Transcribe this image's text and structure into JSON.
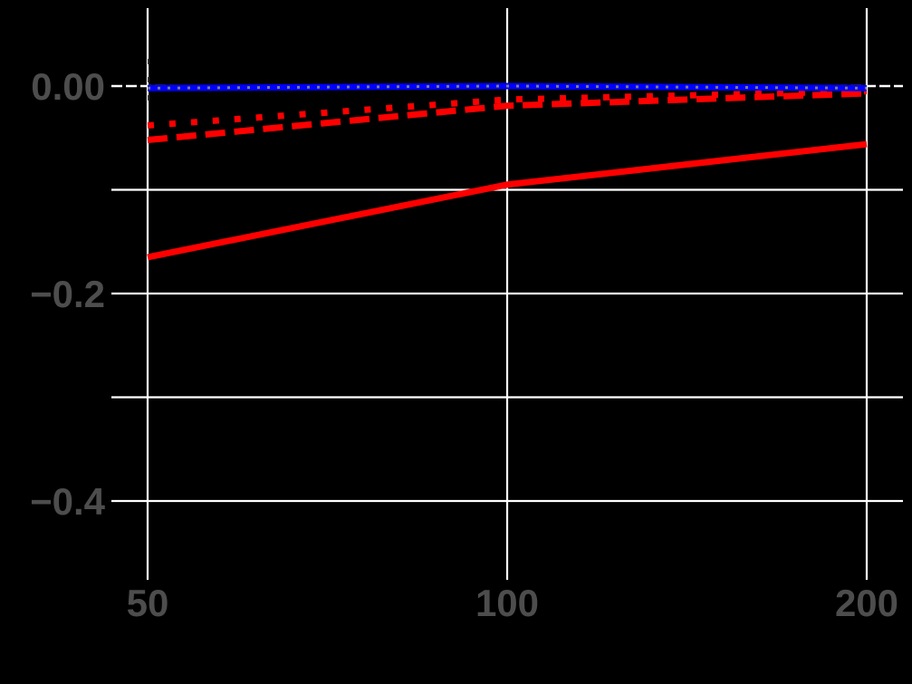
{
  "chart_data": {
    "type": "line",
    "title": "",
    "xlabel": "",
    "ylabel": "",
    "x_scale": "log",
    "x": [
      50,
      100,
      200
    ],
    "x_ticks": [
      50,
      100,
      200
    ],
    "x_tick_labels": [
      "50",
      "100",
      "200"
    ],
    "y_ticks": [
      0.0,
      -0.2,
      -0.4
    ],
    "y_tick_labels": [
      "0.00",
      "−0.2",
      "−0.4"
    ],
    "y_minor_gridlines": [
      -0.1,
      -0.3
    ],
    "xlim": [
      50,
      200
    ],
    "ylim": [
      -0.47,
      0.075
    ],
    "grid": true,
    "legend": null,
    "reference_line": {
      "y": 0,
      "style": "dashed",
      "color": "#ffffff"
    },
    "series": [
      {
        "name": "red-solid",
        "color": "#ff0000",
        "linestyle": "solid",
        "values": [
          -0.165,
          -0.095,
          -0.056
        ]
      },
      {
        "name": "red-dashed",
        "color": "#ff0000",
        "linestyle": "dashed",
        "values": [
          -0.052,
          -0.019,
          -0.007
        ]
      },
      {
        "name": "red-dotted",
        "color": "#ff0000",
        "linestyle": "dotted",
        "values": [
          -0.038,
          -0.013,
          -0.005
        ]
      },
      {
        "name": "blue-solid",
        "color": "#0000ff",
        "linestyle": "solid",
        "values": [
          -0.002,
          0.0,
          -0.002
        ]
      }
    ]
  },
  "style": {
    "background": "#000000",
    "grid_color": "#ffffff",
    "tick_label_color": "#4d4d4d"
  }
}
